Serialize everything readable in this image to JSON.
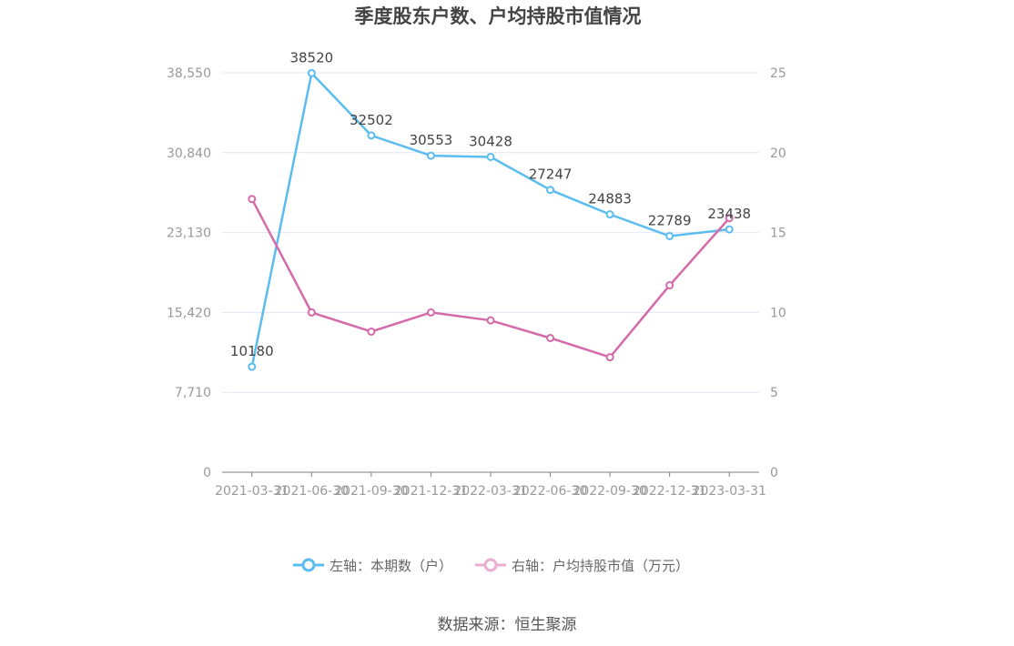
{
  "title": "季度股东户数、户均持股市值情况",
  "source": "数据来源：恒生聚源",
  "legend": {
    "left_label": "左轴：本期数（户）",
    "right_label": "右轴：户均持股市值（万元）"
  },
  "colors": {
    "left": "#5bbcf0",
    "right": "#d46aa9",
    "grid": "#e3e7f5",
    "axis": "#7a7f8a",
    "tick_text": "#999999",
    "label_text": "#444444"
  },
  "chart_data": {
    "type": "line",
    "title": "季度股东户数、户均持股市值情况",
    "categories": [
      "2021-03-31",
      "2021-06-30",
      "2021-09-30",
      "2021-12-31",
      "2022-03-31",
      "2022-06-30",
      "2022-09-30",
      "2022-12-31",
      "2023-03-31"
    ],
    "left_axis": {
      "ticks": [
        "0",
        "7,710",
        "15,420",
        "23,130",
        "30,840",
        "38,550"
      ],
      "ylim": [
        0,
        38550
      ]
    },
    "right_axis": {
      "ticks": [
        "0",
        "5",
        "10",
        "15",
        "20",
        "25"
      ],
      "ylim": [
        0,
        25
      ]
    },
    "series": [
      {
        "name": "左轴：本期数（户）",
        "axis": "left",
        "values": [
          10180,
          38520,
          32502,
          30553,
          30428,
          27247,
          24883,
          22789,
          23438
        ],
        "labels": [
          "10180",
          "38520",
          "32502",
          "30553",
          "30428",
          "27247",
          "24883",
          "22789",
          "23438"
        ]
      },
      {
        "name": "右轴：户均持股市值（万元）",
        "axis": "right",
        "values": [
          17.1,
          10.0,
          8.8,
          10.0,
          9.5,
          8.4,
          7.2,
          11.7,
          15.9
        ]
      }
    ],
    "grid": true,
    "legend_position": "bottom-center"
  }
}
